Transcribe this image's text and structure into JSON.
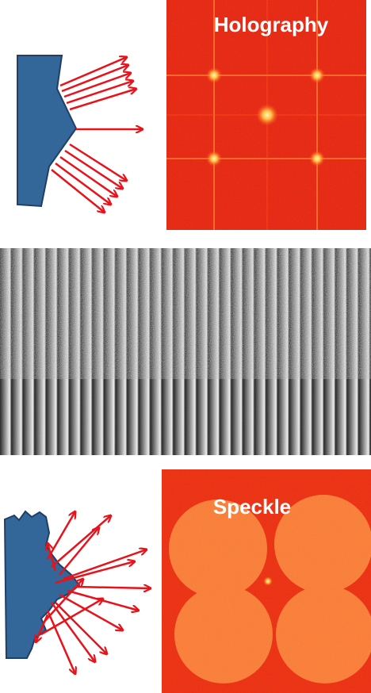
{
  "top": {
    "label": "Holography"
  },
  "bottom": {
    "label": "Speckle"
  }
}
